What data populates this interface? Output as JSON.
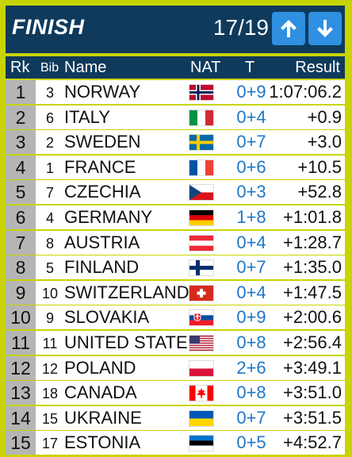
{
  "header": {
    "title": "FINISH",
    "counter": "17/19",
    "up_icon": "arrow-up-icon",
    "down_icon": "arrow-down-icon"
  },
  "columns": {
    "rank": "Rk",
    "bib": "Bib",
    "name": "Name",
    "nat": "NAT",
    "t": "T",
    "result": "Result"
  },
  "colors": {
    "header_bg": "#0f3a5c",
    "frame": "#c8d400",
    "button": "#2f8fe0",
    "t_text": "#1f77c8",
    "rank_bg": "#b5b5b5"
  },
  "rows": [
    {
      "rank": "1",
      "bib": "3",
      "name": "NORWAY",
      "flag": "norway",
      "t": "0+9",
      "result": "1:07:06.2"
    },
    {
      "rank": "2",
      "bib": "6",
      "name": "ITALY",
      "flag": "italy",
      "t": "0+4",
      "result": "+0.9"
    },
    {
      "rank": "3",
      "bib": "2",
      "name": "SWEDEN",
      "flag": "sweden",
      "t": "0+7",
      "result": "+3.0"
    },
    {
      "rank": "4",
      "bib": "1",
      "name": "FRANCE",
      "flag": "france",
      "t": "0+6",
      "result": "+10.5"
    },
    {
      "rank": "5",
      "bib": "7",
      "name": "CZECHIA",
      "flag": "czechia",
      "t": "0+3",
      "result": "+52.8"
    },
    {
      "rank": "6",
      "bib": "4",
      "name": "GERMANY",
      "flag": "germany",
      "t": "1+8",
      "result": "+1:01.8"
    },
    {
      "rank": "7",
      "bib": "8",
      "name": "AUSTRIA",
      "flag": "austria",
      "t": "0+4",
      "result": "+1:28.7"
    },
    {
      "rank": "8",
      "bib": "5",
      "name": "FINLAND",
      "flag": "finland",
      "t": "0+7",
      "result": "+1:35.0"
    },
    {
      "rank": "9",
      "bib": "10",
      "name": "SWITZERLAND",
      "flag": "switzerland",
      "t": "0+4",
      "result": "+1:47.5"
    },
    {
      "rank": "10",
      "bib": "9",
      "name": "SLOVAKIA",
      "flag": "slovakia",
      "t": "0+9",
      "result": "+2:00.6"
    },
    {
      "rank": "11",
      "bib": "11",
      "name": "UNITED STATES",
      "flag": "usa",
      "t": "0+8",
      "result": "+2:56.4"
    },
    {
      "rank": "12",
      "bib": "12",
      "name": "POLAND",
      "flag": "poland",
      "t": "2+6",
      "result": "+3:49.1"
    },
    {
      "rank": "13",
      "bib": "18",
      "name": "CANADA",
      "flag": "canada",
      "t": "0+8",
      "result": "+3:51.0"
    },
    {
      "rank": "14",
      "bib": "15",
      "name": "UKRAINE",
      "flag": "ukraine",
      "t": "0+7",
      "result": "+3:51.5"
    },
    {
      "rank": "15",
      "bib": "17",
      "name": "ESTONIA",
      "flag": "estonia",
      "t": "0+5",
      "result": "+4:52.7"
    }
  ]
}
